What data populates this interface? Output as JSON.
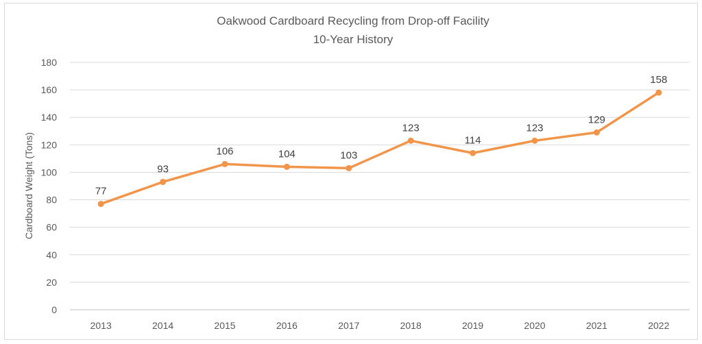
{
  "chart_data": {
    "type": "line",
    "title": "Oakwood Cardboard Recycling from Drop-off Facility",
    "subtitle": "10-Year History",
    "xlabel": "",
    "ylabel": "Cardboard Weight (Tons)",
    "ylim": [
      0,
      180
    ],
    "ytick_step": 20,
    "grid": true,
    "categories": [
      "2013",
      "2014",
      "2015",
      "2016",
      "2017",
      "2018",
      "2019",
      "2020",
      "2021",
      "2022"
    ],
    "series": [
      {
        "name": "Cardboard Weight (Tons)",
        "color": "#f0954a",
        "values": [
          77,
          93,
          106,
          104,
          103,
          123,
          114,
          123,
          129,
          158
        ],
        "labels": [
          "77",
          "93",
          "106",
          "104",
          "103",
          "123",
          "114",
          "123",
          "129",
          "158"
        ]
      }
    ]
  }
}
